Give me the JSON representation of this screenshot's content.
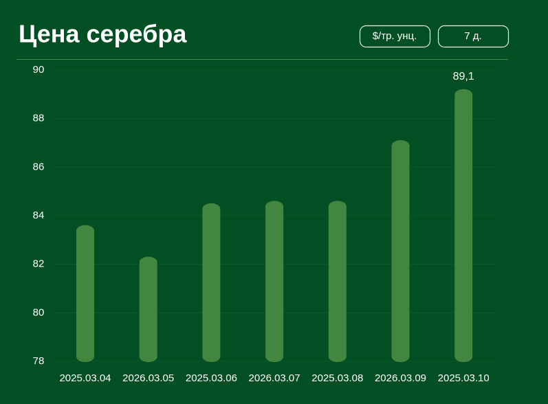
{
  "chart_data": {
    "type": "bar",
    "title": "Цена серебра",
    "buttons": [
      "$/тр. унц.",
      "7 д."
    ],
    "categories": [
      "2025.03.04",
      "2026.03.05",
      "2025.03.06",
      "2026.03.07",
      "2025.03.08",
      "2026.03.09",
      "2025.03.10"
    ],
    "values": [
      83.5,
      82.2,
      84.4,
      84.5,
      84.5,
      87.0,
      89.1
    ],
    "value_labels": [
      null,
      null,
      null,
      null,
      null,
      null,
      "89,1"
    ],
    "color": "#43863f",
    "ylim": [
      78,
      90
    ],
    "yticks": [
      78,
      80,
      82,
      84,
      86,
      88,
      90
    ],
    "grid": true
  }
}
